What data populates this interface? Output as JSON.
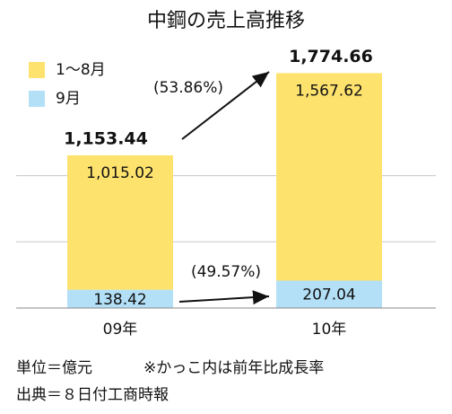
{
  "chart_data": {
    "type": "stacked-bar",
    "title": "中鋼の売上高推移",
    "categories": [
      "09年",
      "10年"
    ],
    "series": [
      {
        "name": "1〜8月",
        "color": "#fde36e",
        "values": [
          1015.02,
          1567.62
        ],
        "value_labels": [
          "1,015.02",
          "1,567.62"
        ]
      },
      {
        "name": "9月",
        "color": "#b3e0f7",
        "values": [
          138.42,
          207.04
        ],
        "value_labels": [
          "138.42",
          "207.04"
        ]
      }
    ],
    "totals": [
      1153.44,
      1774.66
    ],
    "total_labels": [
      "1,153.44",
      "1,774.66"
    ],
    "annotations": [
      "(53.86%)",
      "(49.57%)"
    ],
    "ylim": [
      0,
      1920
    ],
    "yticks": [
      0,
      500,
      1000
    ],
    "grid": true,
    "notes": [
      "単位＝億元",
      "※かっこ内は前年比成長率",
      "出典＝８日付工商時報"
    ]
  }
}
